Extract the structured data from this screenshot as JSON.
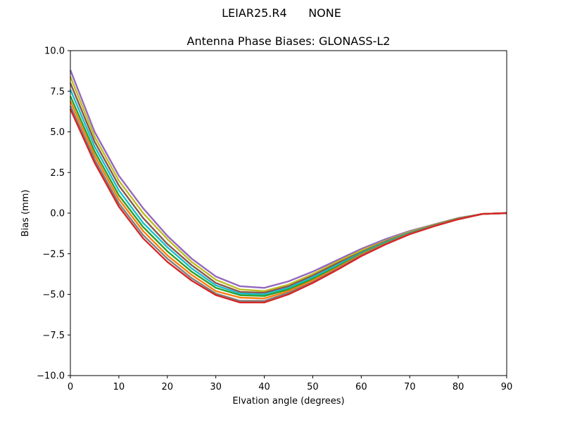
{
  "figure": {
    "suptitle_antenna": "LEIAR25.R4",
    "suptitle_radome": "NONE"
  },
  "chart_data": {
    "type": "line",
    "title": "Antenna Phase Biases: GLONASS-L2",
    "xlabel": "Elvation angle (degrees)",
    "ylabel": "Bias (mm)",
    "xlim": [
      0,
      90
    ],
    "ylim": [
      -10,
      10
    ],
    "xticks": [
      0,
      10,
      20,
      30,
      40,
      50,
      60,
      70,
      80,
      90
    ],
    "xtick_labels": [
      "0",
      "10",
      "20",
      "30",
      "40",
      "50",
      "60",
      "70",
      "80",
      "90"
    ],
    "yticks": [
      10,
      7.5,
      5,
      2.5,
      0,
      -2.5,
      -5,
      -7.5,
      -10
    ],
    "ytick_labels": [
      "10.0",
      "7.5",
      "5.0",
      "2.5",
      "0.0",
      "−2.5",
      "−5.0",
      "−7.5",
      "−10.0"
    ],
    "grid": false,
    "legend": "none",
    "x": [
      0,
      5,
      10,
      15,
      20,
      25,
      30,
      35,
      40,
      45,
      50,
      55,
      60,
      65,
      70,
      75,
      80,
      85,
      90
    ],
    "series": [
      {
        "values": [
          8.8,
          5.0,
          2.3,
          0.3,
          -1.4,
          -2.8,
          -3.9,
          -4.5,
          -4.6,
          -4.2,
          -3.6,
          -2.9,
          -2.2,
          -1.6,
          -1.1,
          -0.7,
          -0.3,
          -0.05,
          0.0
        ],
        "color": "#9467bd"
      },
      {
        "values": [
          8.4,
          4.7,
          2.0,
          0.0,
          -1.6,
          -3.0,
          -4.1,
          -4.7,
          -4.8,
          -4.4,
          -3.75,
          -3.0,
          -2.3,
          -1.7,
          -1.15,
          -0.72,
          -0.32,
          -0.05,
          0.0
        ],
        "color": "#bcbd22"
      },
      {
        "values": [
          8.0,
          4.4,
          1.7,
          -0.3,
          -1.9,
          -3.2,
          -4.3,
          -4.85,
          -4.9,
          -4.5,
          -3.85,
          -3.1,
          -2.4,
          -1.75,
          -1.2,
          -0.75,
          -0.34,
          -0.05,
          0.0
        ],
        "color": "#8c564b"
      },
      {
        "values": [
          7.6,
          4.1,
          1.4,
          -0.6,
          -2.1,
          -3.4,
          -4.45,
          -4.95,
          -5.0,
          -4.6,
          -3.95,
          -3.2,
          -2.45,
          -1.8,
          -1.22,
          -0.77,
          -0.35,
          -0.05,
          0.0
        ],
        "color": "#17becf"
      },
      {
        "values": [
          7.2,
          3.8,
          1.1,
          -0.85,
          -2.35,
          -3.6,
          -4.6,
          -5.05,
          -5.1,
          -4.7,
          -4.05,
          -3.3,
          -2.5,
          -1.85,
          -1.25,
          -0.78,
          -0.36,
          -0.05,
          0.0
        ],
        "color": "#2ca02c"
      },
      {
        "values": [
          6.9,
          3.55,
          0.85,
          -1.1,
          -2.6,
          -3.8,
          -4.8,
          -5.2,
          -5.25,
          -4.8,
          -4.15,
          -3.38,
          -2.55,
          -1.88,
          -1.27,
          -0.79,
          -0.37,
          -0.05,
          0.0
        ],
        "color": "#ff7f0e"
      },
      {
        "values": [
          6.6,
          3.3,
          0.6,
          -1.35,
          -2.8,
          -4.0,
          -4.95,
          -5.4,
          -5.4,
          -4.9,
          -4.25,
          -3.45,
          -2.6,
          -1.9,
          -1.28,
          -0.8,
          -0.38,
          -0.05,
          0.0
        ],
        "color": "#7f7f7f"
      },
      {
        "values": [
          6.4,
          3.1,
          0.4,
          -1.55,
          -3.0,
          -4.15,
          -5.05,
          -5.5,
          -5.5,
          -5.0,
          -4.3,
          -3.5,
          -2.65,
          -1.93,
          -1.3,
          -0.81,
          -0.38,
          -0.05,
          0.0
        ],
        "color": "#d62728"
      }
    ]
  }
}
